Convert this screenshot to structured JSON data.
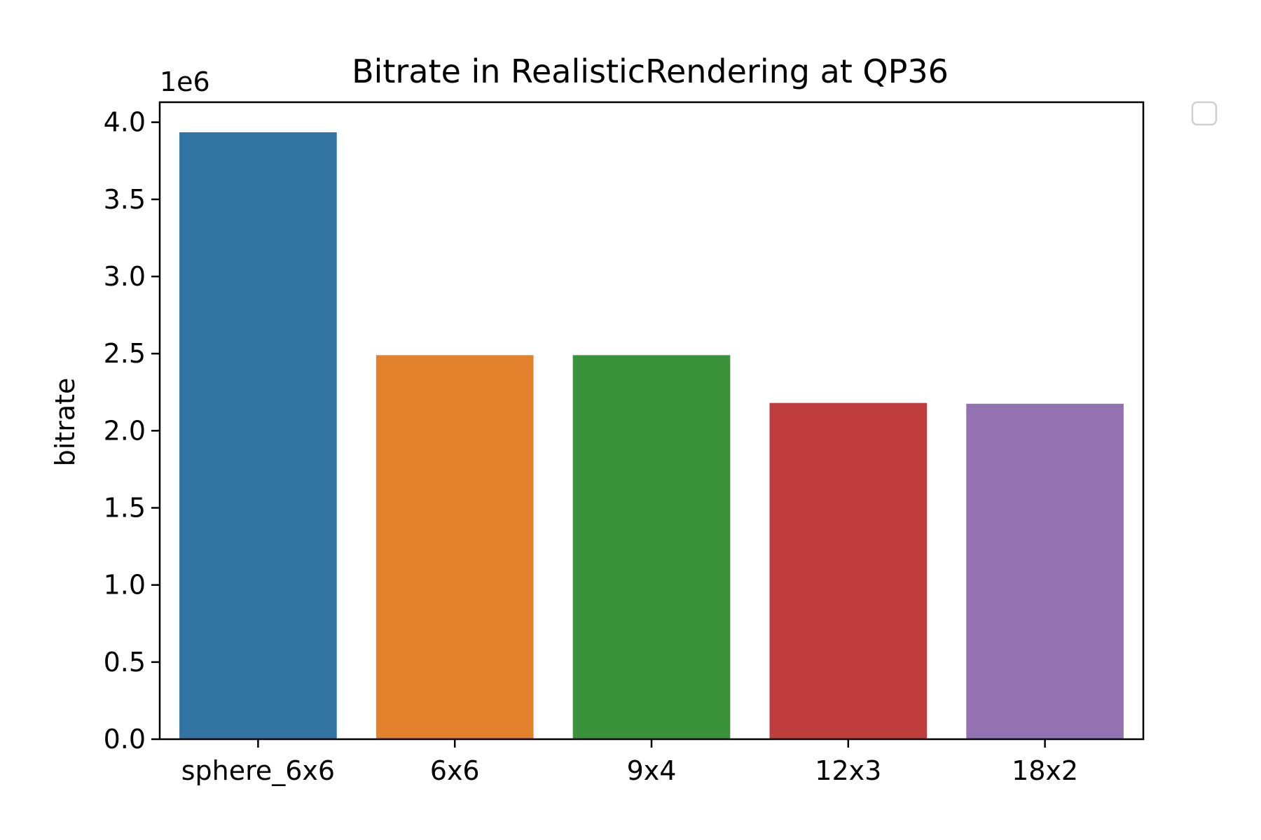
{
  "chart_data": {
    "type": "bar",
    "title": "Bitrate in RealisticRendering at QP36",
    "xlabel": "",
    "ylabel": "bitrate",
    "offset_label": "1e6",
    "categories": [
      "sphere_6x6",
      "6x6",
      "9x4",
      "12x3",
      "18x2"
    ],
    "values": [
      3935000,
      2490000,
      2490000,
      2180000,
      2175000
    ],
    "colors": [
      "#3274a1",
      "#e1812c",
      "#3a923a",
      "#c03d3e",
      "#9372b2"
    ],
    "ylim": [
      0,
      4130000
    ],
    "yticks": [
      0,
      500000,
      1000000,
      1500000,
      2000000,
      2500000,
      3000000,
      3500000,
      4000000
    ],
    "ytick_labels": [
      "0.0",
      "0.5",
      "1.0",
      "1.5",
      "2.0",
      "2.5",
      "3.0",
      "3.5",
      "4.0"
    ],
    "grid": false,
    "legend": {
      "placement": "outside-top-right",
      "entries": []
    }
  }
}
